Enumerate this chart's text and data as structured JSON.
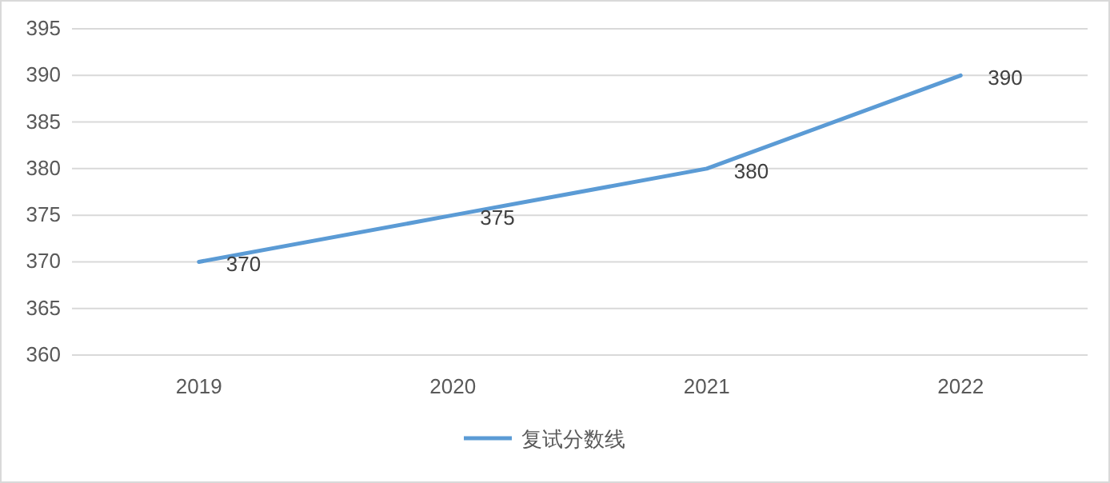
{
  "chart_data": {
    "type": "line",
    "categories": [
      "2019",
      "2020",
      "2021",
      "2022"
    ],
    "series": [
      {
        "name": "复试分数线",
        "color": "#5b9bd5",
        "values": [
          370,
          375,
          380,
          390
        ]
      }
    ],
    "ylim": [
      360,
      395
    ],
    "yticks": [
      360,
      365,
      370,
      375,
      380,
      385,
      390,
      395
    ],
    "grid": "y",
    "legend": "bottom",
    "data_labels": true
  }
}
